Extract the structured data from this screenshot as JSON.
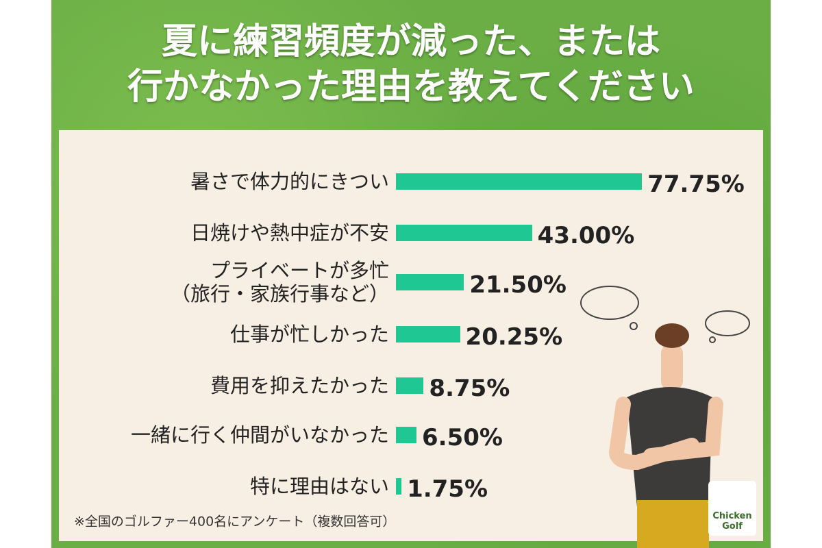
{
  "chart_data": {
    "type": "hbar",
    "title": "夏に練習頻度が減った、または\n行かなかった理由を教えてください",
    "categories": [
      "暑さで体力的にきつい",
      "日焼けや熱中症が不安",
      "プライベートが多忙\n（旅行・家族行事など）",
      "仕事が忙しかった",
      "費用を抑えたかった",
      "一緒に行く仲間がいなかった",
      "特に理由はない"
    ],
    "values": [
      77.75,
      43.0,
      21.5,
      20.25,
      8.75,
      6.5,
      1.75
    ],
    "value_labels": [
      "77.75%",
      "43.00%",
      "21.50%",
      "20.25%",
      "8.75%",
      "6.50%",
      "1.75%"
    ],
    "color": "#1fc893",
    "note": "※全国のゴルファー400名にアンケート（複数回答可）",
    "logo": "Chicken Golf"
  }
}
